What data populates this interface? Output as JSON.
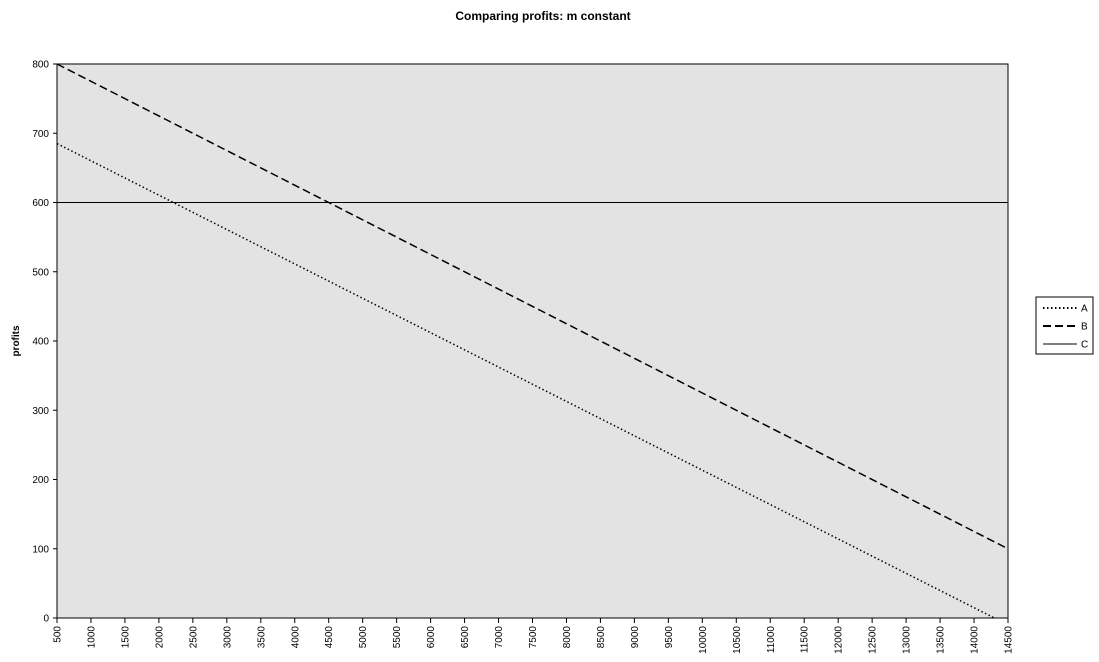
{
  "chart_data": {
    "type": "line",
    "title": "Comparing profits: m constant",
    "xlabel": "",
    "ylabel": "profits",
    "ylim": [
      0,
      800
    ],
    "xlim": [
      500,
      14500
    ],
    "yticks": [
      0,
      100,
      200,
      300,
      400,
      500,
      600,
      700,
      800
    ],
    "categories": [
      500,
      1000,
      1500,
      2000,
      2500,
      3000,
      3500,
      4000,
      4500,
      5000,
      5500,
      6000,
      6500,
      7000,
      7500,
      8000,
      8500,
      9000,
      9500,
      10000,
      10500,
      11000,
      11500,
      12000,
      12500,
      13000,
      13500,
      14000,
      14500
    ],
    "grid": false,
    "legend_position": "right",
    "plot_background": "#e3e3e3",
    "series": [
      {
        "name": "A",
        "style": "dotted",
        "color": "#000000",
        "x": [
          500,
          14300
        ],
        "values": [
          685,
          0
        ]
      },
      {
        "name": "B",
        "style": "dashed",
        "color": "#000000",
        "x": [
          500,
          14500
        ],
        "values": [
          800,
          100
        ]
      },
      {
        "name": "C",
        "style": "solid",
        "color": "#000000",
        "x": [
          500,
          14500
        ],
        "values": [
          600,
          600
        ]
      }
    ]
  }
}
